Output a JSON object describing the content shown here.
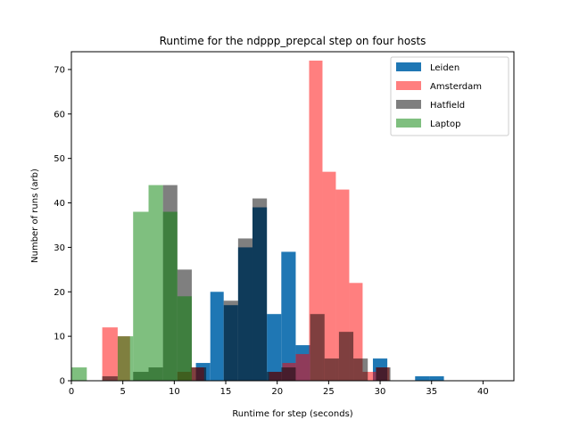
{
  "chart_data": {
    "type": "bar",
    "title": "Runtime for the ndppp_prepcal step on four hosts",
    "xlabel": "Runtime for step (seconds)",
    "ylabel": "Number of runs (arb)",
    "xlim": [
      0,
      43
    ],
    "ylim": [
      0,
      74
    ],
    "xticks": [
      0,
      5,
      10,
      15,
      20,
      25,
      30,
      35,
      40
    ],
    "yticks": [
      0,
      10,
      20,
      30,
      40,
      50,
      60,
      70
    ],
    "grid": false,
    "legend_position": "top-right",
    "series": [
      {
        "name": "Leiden",
        "color": "#1f77b4",
        "opacity": 1.0,
        "bins": [
          {
            "x0": 12.1,
            "x1": 13.5,
            "y": 4
          },
          {
            "x0": 13.5,
            "x1": 14.8,
            "y": 20
          },
          {
            "x0": 14.8,
            "x1": 16.2,
            "y": 17
          },
          {
            "x0": 16.2,
            "x1": 17.6,
            "y": 30
          },
          {
            "x0": 17.6,
            "x1": 19.0,
            "y": 39
          },
          {
            "x0": 19.0,
            "x1": 20.4,
            "y": 15
          },
          {
            "x0": 20.4,
            "x1": 21.8,
            "y": 29
          },
          {
            "x0": 21.8,
            "x1": 23.2,
            "y": 8
          },
          {
            "x0": 29.3,
            "x1": 30.7,
            "y": 5
          },
          {
            "x0": 33.4,
            "x1": 34.8,
            "y": 1
          },
          {
            "x0": 34.8,
            "x1": 36.2,
            "y": 1
          }
        ]
      },
      {
        "name": "Amsterdam",
        "color": "#ff0000",
        "opacity": 0.5,
        "bins": [
          {
            "x0": 3.0,
            "x1": 4.5,
            "y": 12
          },
          {
            "x0": 4.5,
            "x1": 5.7,
            "y": 10
          },
          {
            "x0": 10.3,
            "x1": 11.6,
            "y": 2
          },
          {
            "x0": 11.6,
            "x1": 12.9,
            "y": 3
          },
          {
            "x0": 19.2,
            "x1": 20.5,
            "y": 2
          },
          {
            "x0": 20.5,
            "x1": 21.8,
            "y": 4
          },
          {
            "x0": 21.8,
            "x1": 23.1,
            "y": 6
          },
          {
            "x0": 23.1,
            "x1": 24.4,
            "y": 72
          },
          {
            "x0": 24.4,
            "x1": 25.7,
            "y": 47
          },
          {
            "x0": 25.7,
            "x1": 27.0,
            "y": 43
          },
          {
            "x0": 27.0,
            "x1": 28.3,
            "y": 22
          },
          {
            "x0": 28.3,
            "x1": 29.6,
            "y": 2
          },
          {
            "x0": 29.6,
            "x1": 30.9,
            "y": 3
          }
        ]
      },
      {
        "name": "Hatfield",
        "color": "#000000",
        "opacity": 0.5,
        "bins": [
          {
            "x0": 3.0,
            "x1": 4.5,
            "y": 1
          },
          {
            "x0": 6.0,
            "x1": 7.5,
            "y": 2
          },
          {
            "x0": 7.5,
            "x1": 8.9,
            "y": 3
          },
          {
            "x0": 8.9,
            "x1": 10.3,
            "y": 44
          },
          {
            "x0": 10.3,
            "x1": 11.7,
            "y": 25
          },
          {
            "x0": 11.7,
            "x1": 13.1,
            "y": 3
          },
          {
            "x0": 14.8,
            "x1": 16.2,
            "y": 18
          },
          {
            "x0": 16.2,
            "x1": 17.6,
            "y": 32
          },
          {
            "x0": 17.6,
            "x1": 19.0,
            "y": 41
          },
          {
            "x0": 19.0,
            "x1": 20.4,
            "y": 2
          },
          {
            "x0": 20.4,
            "x1": 21.8,
            "y": 3
          },
          {
            "x0": 23.2,
            "x1": 24.6,
            "y": 15
          },
          {
            "x0": 24.6,
            "x1": 26.0,
            "y": 5
          },
          {
            "x0": 26.0,
            "x1": 27.4,
            "y": 11
          },
          {
            "x0": 27.4,
            "x1": 28.8,
            "y": 5
          },
          {
            "x0": 29.6,
            "x1": 31.0,
            "y": 3
          }
        ]
      },
      {
        "name": "Laptop",
        "color": "#008000",
        "opacity": 0.5,
        "bins": [
          {
            "x0": 0.0,
            "x1": 1.5,
            "y": 3
          },
          {
            "x0": 4.5,
            "x1": 6.0,
            "y": 10
          },
          {
            "x0": 6.0,
            "x1": 7.5,
            "y": 38
          },
          {
            "x0": 7.5,
            "x1": 8.9,
            "y": 44
          },
          {
            "x0": 8.9,
            "x1": 10.3,
            "y": 38
          },
          {
            "x0": 10.3,
            "x1": 11.7,
            "y": 19
          },
          {
            "x0": 11.7,
            "x1": 13.1,
            "y": 0
          },
          {
            "x0": 20.4,
            "x1": 21.8,
            "y": 0
          }
        ]
      }
    ]
  }
}
